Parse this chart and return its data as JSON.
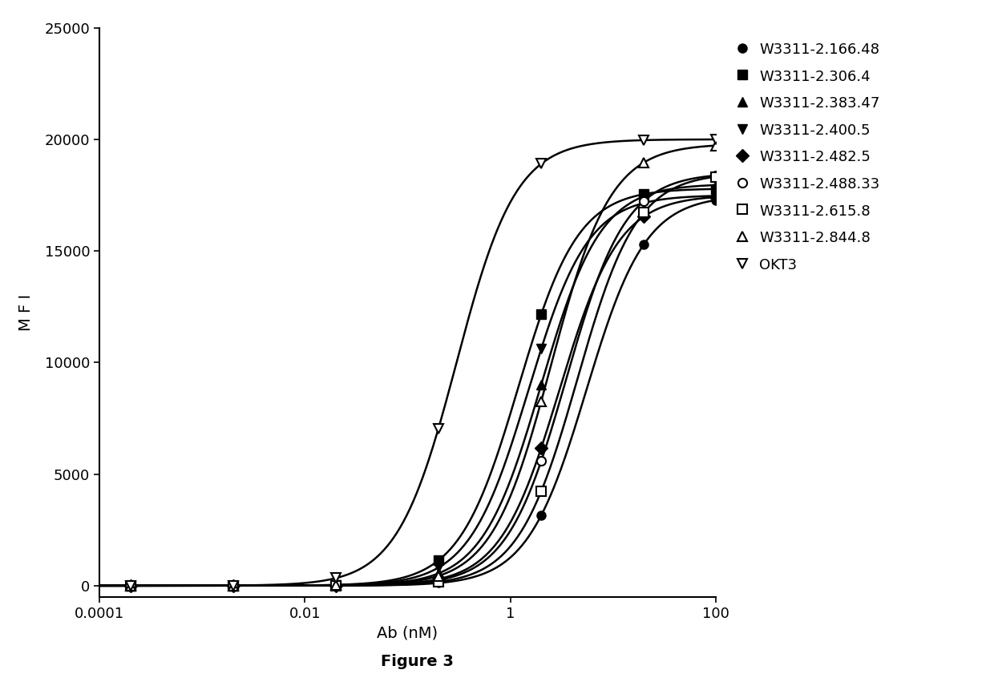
{
  "title": "",
  "xlabel": "Ab (nM)",
  "ylabel": "M F I",
  "figure_caption": "Figure 3",
  "xlim": [
    0.0001,
    100
  ],
  "ylim": [
    -500,
    25000
  ],
  "yticks": [
    0,
    5000,
    10000,
    15000,
    20000,
    25000
  ],
  "xticks": [
    0.0001,
    0.01,
    1,
    100
  ],
  "xtick_labels": [
    "0.0001",
    "0.01",
    "1",
    "100"
  ],
  "series": [
    {
      "label": "W3311-2.166.48",
      "marker": "o",
      "fillstyle": "full",
      "ec50": 5.5,
      "bottom": 0,
      "top": 17500,
      "hill": 1.5,
      "x_data": [
        0.0002,
        0.002,
        0.02,
        0.2,
        2,
        20,
        100
      ]
    },
    {
      "label": "W3311-2.306.4",
      "marker": "s",
      "fillstyle": "full",
      "ec50": 1.2,
      "bottom": 0,
      "top": 17800,
      "hill": 1.5,
      "x_data": [
        0.0002,
        0.002,
        0.02,
        0.2,
        2,
        20,
        100
      ]
    },
    {
      "label": "W3311-2.383.47",
      "marker": "^",
      "fillstyle": "full",
      "ec50": 2.0,
      "bottom": 0,
      "top": 18000,
      "hill": 1.5,
      "x_data": [
        0.0002,
        0.002,
        0.02,
        0.2,
        2,
        20,
        100
      ]
    },
    {
      "label": "W3311-2.400.5",
      "marker": "v",
      "fillstyle": "full",
      "ec50": 1.5,
      "bottom": 0,
      "top": 17500,
      "hill": 1.5,
      "x_data": [
        0.0002,
        0.002,
        0.02,
        0.2,
        2,
        20,
        100
      ]
    },
    {
      "label": "W3311-2.482.5",
      "marker": "D",
      "fillstyle": "full",
      "ec50": 3.0,
      "bottom": 0,
      "top": 17500,
      "hill": 1.5,
      "x_data": [
        0.0002,
        0.002,
        0.02,
        0.2,
        2,
        20,
        100
      ]
    },
    {
      "label": "W3311-2.488.33",
      "marker": "o",
      "fillstyle": "none",
      "ec50": 3.5,
      "bottom": 0,
      "top": 18500,
      "hill": 1.5,
      "x_data": [
        0.0002,
        0.002,
        0.02,
        0.2,
        2,
        20,
        100
      ]
    },
    {
      "label": "W3311-2.615.8",
      "marker": "s",
      "fillstyle": "none",
      "ec50": 4.5,
      "bottom": 0,
      "top": 18500,
      "hill": 1.5,
      "x_data": [
        0.0002,
        0.002,
        0.02,
        0.2,
        2,
        20,
        100
      ]
    },
    {
      "label": "W3311-2.844.8",
      "marker": "^",
      "fillstyle": "none",
      "ec50": 2.5,
      "bottom": 0,
      "top": 19800,
      "hill": 1.5,
      "x_data": [
        0.0002,
        0.002,
        0.02,
        0.2,
        2,
        20,
        100
      ]
    },
    {
      "label": "OKT3",
      "marker": "v",
      "fillstyle": "none",
      "ec50": 0.3,
      "bottom": 0,
      "top": 20000,
      "hill": 1.5,
      "x_data": [
        0.0002,
        0.002,
        0.02,
        0.2,
        2,
        20,
        100
      ]
    }
  ],
  "background_color": "#ffffff",
  "line_color": "#000000",
  "marker_size": 8,
  "line_width": 1.8,
  "font_family": "DejaVu Sans"
}
